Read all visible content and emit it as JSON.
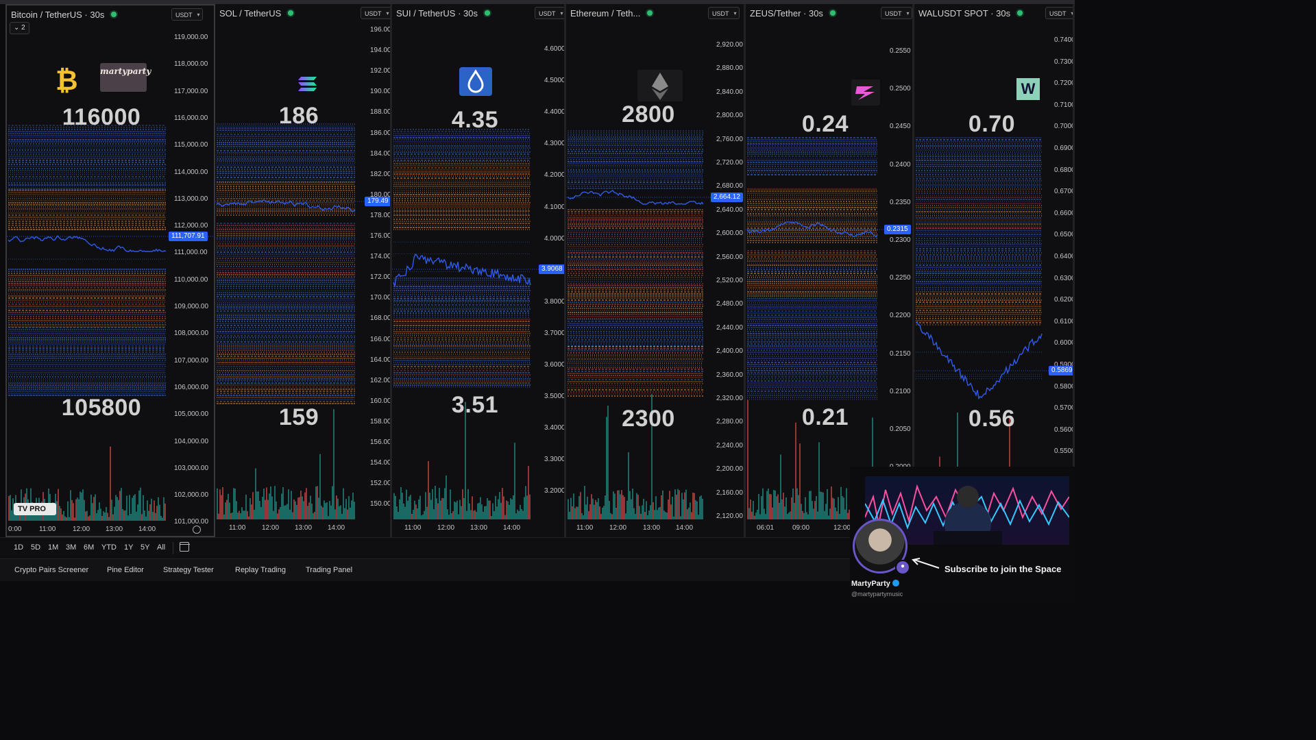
{
  "panels": [
    {
      "title": "Bitcoin / TetherUS · 30s",
      "currency": "USDT",
      "badge": "2",
      "logo_icon": "bitcoin-logo-icon",
      "sublogo": "martyparty",
      "big_high": "116000",
      "big_low": "105800",
      "ticks": [
        "119,000.00",
        "118,000.00",
        "117,000.00",
        "116,000.00",
        "115,000.00",
        "114,000.00",
        "113,000.00",
        "112,000.00",
        "111,000.00",
        "110,000.00",
        "109,000.00",
        "108,000.00",
        "107,000.00",
        "106,000.00",
        "105,000.00",
        "104,000.00",
        "103,000.00",
        "102,000.00",
        "101,000.00"
      ],
      "price": "111,707.91",
      "times": [
        "0:00",
        "11:00",
        "12:00",
        "13:00",
        "14:00"
      ]
    },
    {
      "title": "SOL / TetherUS",
      "currency": "USDT",
      "logo_icon": "solana-logo-icon",
      "big_high": "186",
      "big_low": "159",
      "ticks": [
        "196.00",
        "194.00",
        "192.00",
        "190.00",
        "188.00",
        "186.00",
        "184.00",
        "182.00",
        "180.00",
        "178.00",
        "176.00",
        "174.00",
        "172.00",
        "170.00",
        "168.00",
        "166.00",
        "164.00",
        "162.00",
        "160.00",
        "158.00",
        "156.00",
        "154.00",
        "152.00",
        "150.00"
      ],
      "price": "179.49",
      "times": [
        "11:00",
        "12:00",
        "13:00",
        "14:00"
      ]
    },
    {
      "title": "SUI / TetherUS · 30s",
      "currency": "USDT",
      "logo_icon": "sui-logo-icon",
      "big_high": "4.35",
      "big_low": "3.51",
      "ticks": [
        "4.6000",
        "4.5000",
        "4.4000",
        "4.3000",
        "4.2000",
        "4.1000",
        "4.0000",
        "3.9000",
        "3.8000",
        "3.7000",
        "3.6000",
        "3.5000",
        "3.4000",
        "3.3000",
        "3.2000"
      ],
      "price": "3.9068",
      "times": [
        "11:00",
        "12:00",
        "13:00",
        "14:00"
      ]
    },
    {
      "title": "Ethereum / Teth...",
      "currency": "USDT",
      "logo_icon": "ethereum-logo-icon",
      "big_high": "2800",
      "big_low": "2300",
      "ticks": [
        "2,920.00",
        "2,880.00",
        "2,840.00",
        "2,800.00",
        "2,760.00",
        "2,720.00",
        "2,680.00",
        "2,640.00",
        "2,600.00",
        "2,560.00",
        "2,520.00",
        "2,480.00",
        "2,440.00",
        "2,400.00",
        "2,360.00",
        "2,320.00",
        "2,280.00",
        "2,240.00",
        "2,200.00",
        "2,160.00",
        "2,120.00"
      ],
      "price": "2,664.12",
      "times": [
        "11:00",
        "12:00",
        "13:00",
        "14:00"
      ]
    },
    {
      "title": "ZEUS/Tether · 30s",
      "currency": "USDT",
      "logo_icon": "zeus-logo-icon",
      "big_high": "0.24",
      "big_low": "0.21",
      "ticks": [
        "0.2550",
        "0.2500",
        "0.2450",
        "0.2400",
        "0.2350",
        "0.2300",
        "0.2250",
        "0.2200",
        "0.2150",
        "0.2100",
        "0.2050",
        "0.2000"
      ],
      "price": "0.2315",
      "times": [
        "06:01",
        "09:00",
        "12:00"
      ]
    },
    {
      "title": "WALUSDT SPOT · 30s",
      "currency": "USDT",
      "logo_icon": "walrus-logo-icon",
      "logo_text": "W",
      "big_high": "0.70",
      "big_low": "0.56",
      "ticks": [
        "0.7400",
        "0.7300",
        "0.7200",
        "0.7100",
        "0.7000",
        "0.6900",
        "0.6800",
        "0.6700",
        "0.6600",
        "0.6500",
        "0.6400",
        "0.6300",
        "0.6200",
        "0.6100",
        "0.6000",
        "0.5900",
        "0.5800",
        "0.5700",
        "0.5600",
        "0.5500"
      ],
      "price": "0.5869",
      "times": []
    }
  ],
  "tv_badge": "TV PRO",
  "ranges": [
    "1D",
    "5D",
    "1M",
    "3M",
    "6M",
    "YTD",
    "1Y",
    "5Y",
    "All"
  ],
  "tabs": [
    "Crypto Pairs Screener",
    "Pine Editor",
    "Strategy Tester",
    "Replay Trading",
    "Trading Panel"
  ],
  "overlay": {
    "cta": "Subscribe to join the Space",
    "name": "MartyParty",
    "handle": "@martypartymusic"
  },
  "colors": {
    "line": "#2f5bea",
    "tag": "#2962ff",
    "vol_up": "#26a69a",
    "vol_down": "#ef5350",
    "band_blue": "#3f72d8",
    "band_orange": "#e08a3a",
    "band_red": "#d84a4a",
    "live": "#2fbf71"
  }
}
